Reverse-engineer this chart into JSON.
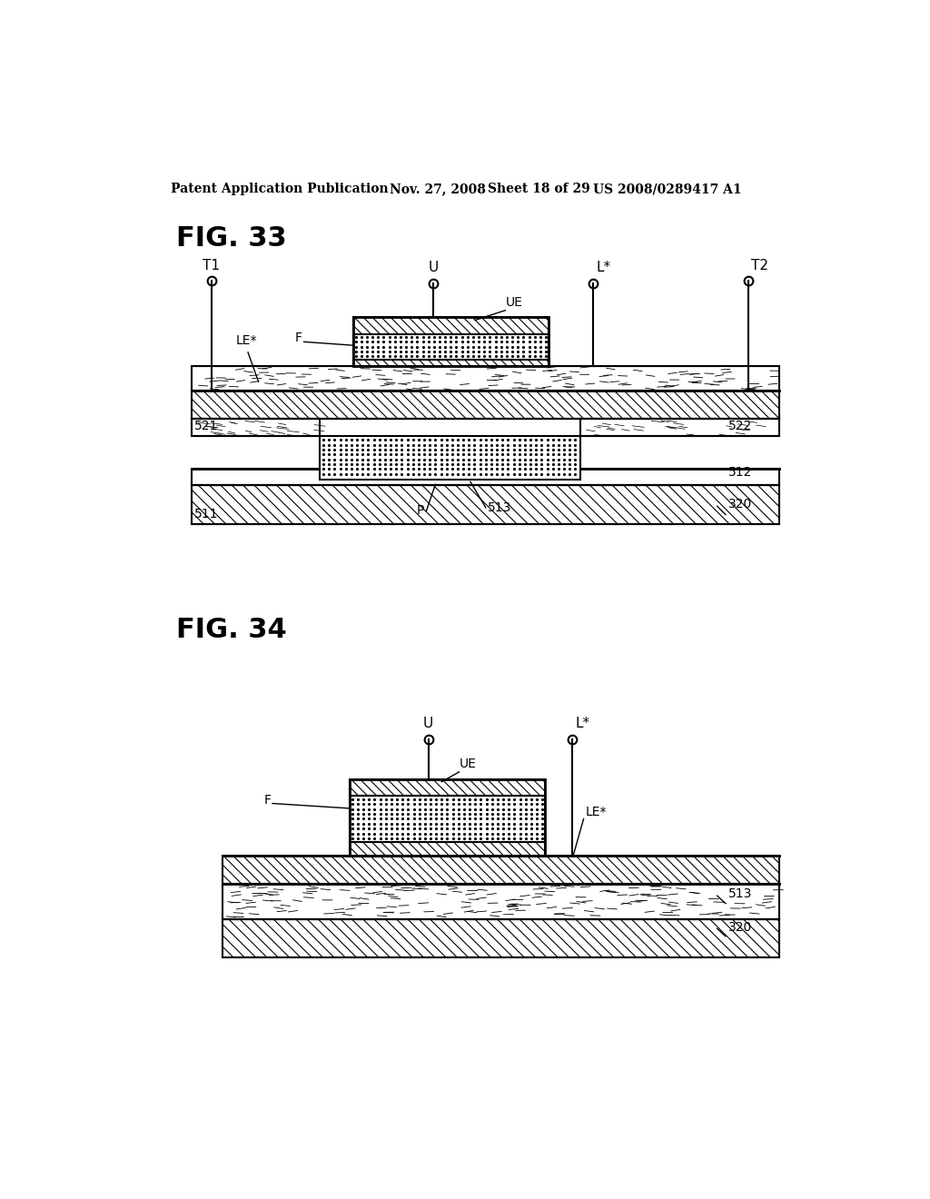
{
  "bg_color": "#ffffff",
  "header_text": "Patent Application Publication",
  "header_date": "Nov. 27, 2008",
  "header_sheet": "Sheet 18 of 29",
  "header_patent": "US 2008/0289417 A1",
  "fig33_label": "FIG. 33",
  "fig34_label": "FIG. 34"
}
